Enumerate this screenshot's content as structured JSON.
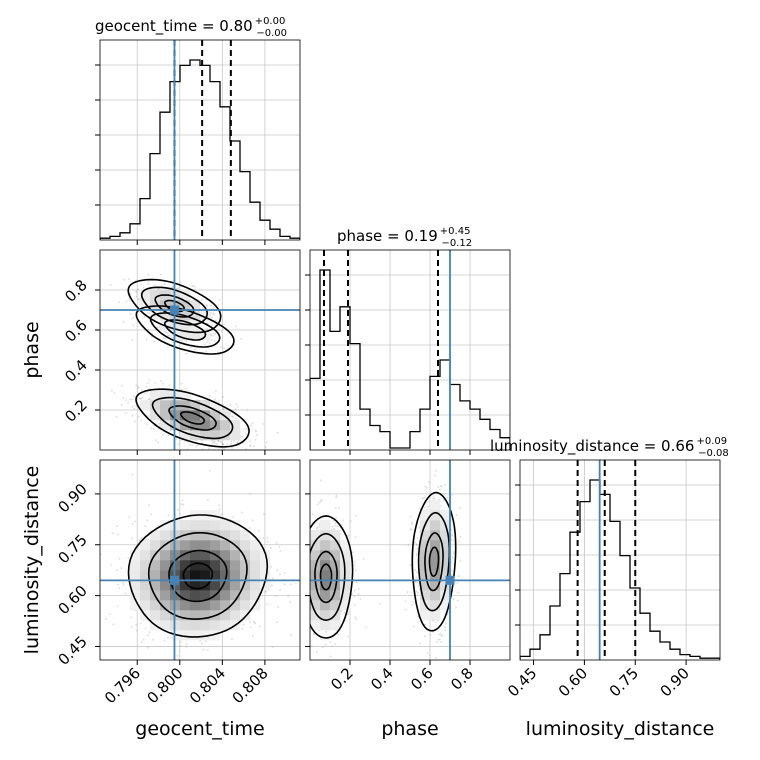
{
  "chart_data": {
    "type": "corner",
    "parameters": [
      "geocent_time",
      "phase",
      "luminosity_distance"
    ],
    "truths": {
      "geocent_time": 0.7995,
      "phase": 0.7,
      "luminosity_distance": 0.645
    },
    "titles": [
      {
        "text": "geocent_time = 0.80",
        "sup": "+0.00",
        "sub": "−0.00"
      },
      {
        "text": "phase = 0.19",
        "sup": "+0.45",
        "sub": "−0.12"
      },
      {
        "text": "luminosity_distance = 0.66",
        "sup": "+0.09",
        "sub": "−0.08"
      }
    ],
    "axes": {
      "geocent_time": {
        "range": [
          0.7925,
          0.8113
        ],
        "ticks": [
          0.796,
          0.8,
          0.804,
          0.808
        ],
        "tick_labels": [
          "0.796",
          "0.800",
          "0.804",
          "0.808"
        ],
        "quantiles": [
          0.7995,
          0.8021,
          0.8048
        ]
      },
      "phase": {
        "range": [
          0.0,
          1.0
        ],
        "ticks": [
          0.2,
          0.4,
          0.6,
          0.8
        ],
        "tick_labels": [
          "0.2",
          "0.4",
          "0.6",
          "0.8"
        ],
        "quantiles": [
          0.07,
          0.19,
          0.64
        ]
      },
      "luminosity_distance": {
        "range": [
          0.41,
          1.0
        ],
        "ticks": [
          0.45,
          0.6,
          0.75,
          0.9
        ],
        "tick_labels": [
          "0.45",
          "0.60",
          "0.75",
          "0.90"
        ],
        "quantiles": [
          0.58,
          0.66,
          0.75
        ]
      }
    },
    "histograms": {
      "geocent_time": [
        1,
        2,
        4,
        9,
        23,
        48,
        71,
        88,
        97,
        100,
        97,
        88,
        74,
        55,
        38,
        21,
        11,
        6,
        2,
        1
      ],
      "phase": [
        35,
        88,
        58,
        70,
        52,
        20,
        12,
        9,
        1,
        1,
        9,
        20,
        36,
        44,
        32,
        24,
        20,
        15,
        10,
        6
      ],
      "luminosity_distance": [
        2,
        6,
        14,
        30,
        48,
        71,
        88,
        100,
        92,
        77,
        58,
        40,
        26,
        16,
        10,
        6,
        3,
        2,
        1,
        1
      ]
    },
    "grid": true
  }
}
